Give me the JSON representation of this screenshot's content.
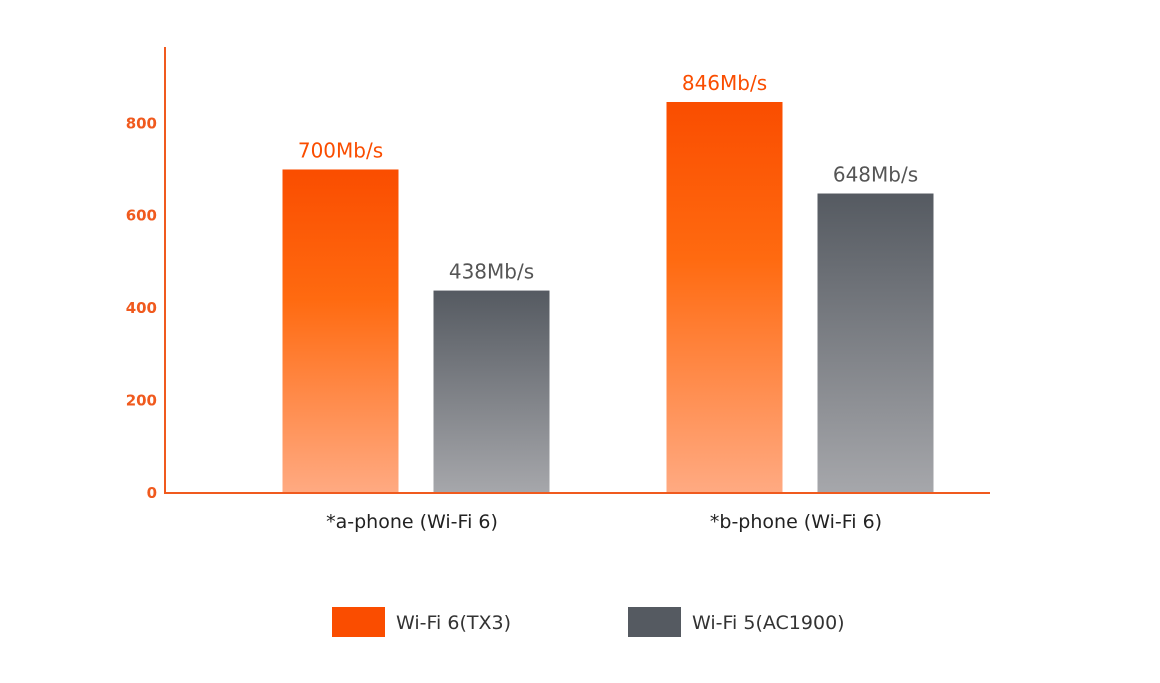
{
  "chart_data": {
    "type": "bar",
    "categories": [
      "*a-phone (Wi-Fi 6)",
      "*b-phone (Wi-Fi 6)"
    ],
    "series": [
      {
        "name": "Wi-Fi 6(TX3)",
        "values": [
          700,
          846
        ],
        "labels": [
          "700Mb/s",
          "846Mb/s"
        ],
        "color": "#fa4d00",
        "color_light": "#ffaa82",
        "label_color": "#fa4d00"
      },
      {
        "name": "Wi-Fi 5(AC1900)",
        "values": [
          438,
          648
        ],
        "labels": [
          "438Mb/s",
          "648Mb/s"
        ],
        "color": "#555a61",
        "color_light": "#a6a7ab",
        "label_color": "#555555"
      }
    ],
    "yticks": [
      "0",
      "200",
      "400",
      "600",
      "800"
    ],
    "ylim": [
      0,
      965
    ],
    "axis_color": "#f05a1e",
    "grid": false,
    "legend_position": "bottom-center",
    "title": "",
    "xlabel": "",
    "ylabel": ""
  }
}
